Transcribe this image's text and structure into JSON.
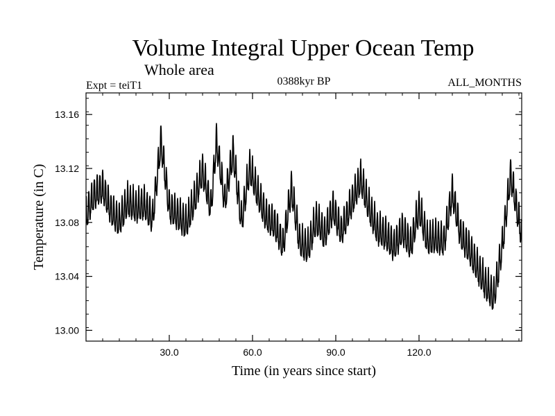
{
  "chart_data": {
    "type": "line",
    "title": "Volume Integral Upper Ocean Temp",
    "subtitle": "Whole area",
    "experiment": "Expt = teiT1",
    "epoch": "0388kyr BP",
    "months": "ALL_MONTHS",
    "xlabel": "Time (in years since start)",
    "ylabel": "Temperature (in C)",
    "xlim": [
      0,
      157
    ],
    "ylim": [
      12.992,
      13.176
    ],
    "xticks": [
      30,
      60,
      90,
      120
    ],
    "xtick_labels": [
      "30.0",
      "60.0",
      "90.0",
      "120.0"
    ],
    "yticks": [
      13.0,
      13.04,
      13.08,
      13.12,
      13.16
    ],
    "ytick_labels": [
      "13.00",
      "13.04",
      "13.08",
      "13.12",
      "13.16"
    ],
    "grid": false,
    "series": [
      {
        "name": "Volume Integral Upper Ocean Temp",
        "color": "#000000",
        "x": [
          0,
          3,
          6,
          9,
          12,
          15,
          18,
          21,
          24,
          27,
          30,
          33,
          36,
          39,
          42,
          45,
          47,
          50,
          53,
          56,
          59,
          62,
          65,
          68,
          71,
          74,
          77,
          80,
          83,
          86,
          89,
          92,
          95,
          99,
          102,
          105,
          108,
          111,
          114,
          117,
          120,
          123,
          126,
          129,
          132,
          135,
          138,
          141,
          144,
          147,
          150,
          153,
          157
        ],
        "values": [
          13.085,
          13.1,
          13.105,
          13.088,
          13.08,
          13.095,
          13.09,
          13.093,
          13.082,
          13.14,
          13.09,
          13.085,
          13.078,
          13.095,
          13.118,
          13.09,
          13.14,
          13.095,
          13.132,
          13.08,
          13.12,
          13.1,
          13.083,
          13.078,
          13.062,
          13.105,
          13.065,
          13.06,
          13.082,
          13.07,
          13.09,
          13.072,
          13.09,
          13.112,
          13.09,
          13.074,
          13.07,
          13.061,
          13.074,
          13.062,
          13.09,
          13.066,
          13.068,
          13.065,
          13.102,
          13.07,
          13.06,
          13.046,
          13.033,
          13.024,
          13.062,
          13.115,
          13.07
        ],
        "amplitude": 0.011
      }
    ]
  }
}
